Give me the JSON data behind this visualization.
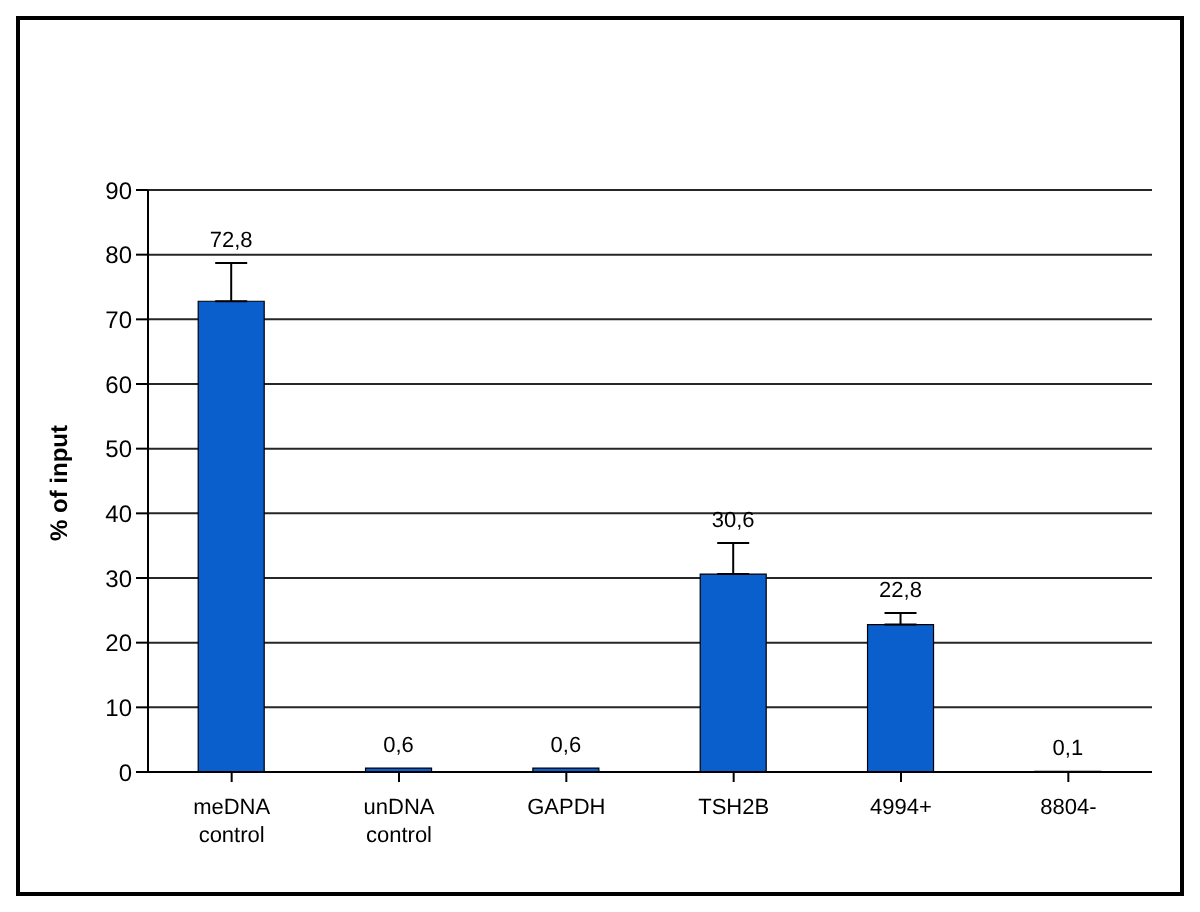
{
  "chart_data": {
    "type": "bar",
    "ylabel": "% of input",
    "categories": [
      "meDNA control",
      "unDNA control",
      "GAPDH",
      "TSH2B",
      "4994+",
      "8804-"
    ],
    "values": [
      72.8,
      0.6,
      0.6,
      30.6,
      22.8,
      0.1
    ],
    "errors": [
      [
        72.8,
        78.7
      ],
      null,
      null,
      [
        30.6,
        35.4
      ],
      [
        22.8,
        24.6
      ],
      null
    ],
    "value_labels": [
      "72,8",
      "0,6",
      "0,6",
      "30,6",
      "22,8",
      "0,1"
    ],
    "color": "#0b5fcc",
    "ylim": [
      0,
      90
    ],
    "yticks": [
      0,
      10,
      20,
      30,
      40,
      50,
      60,
      70,
      80,
      90
    ],
    "grid": "y",
    "legend": false
  }
}
